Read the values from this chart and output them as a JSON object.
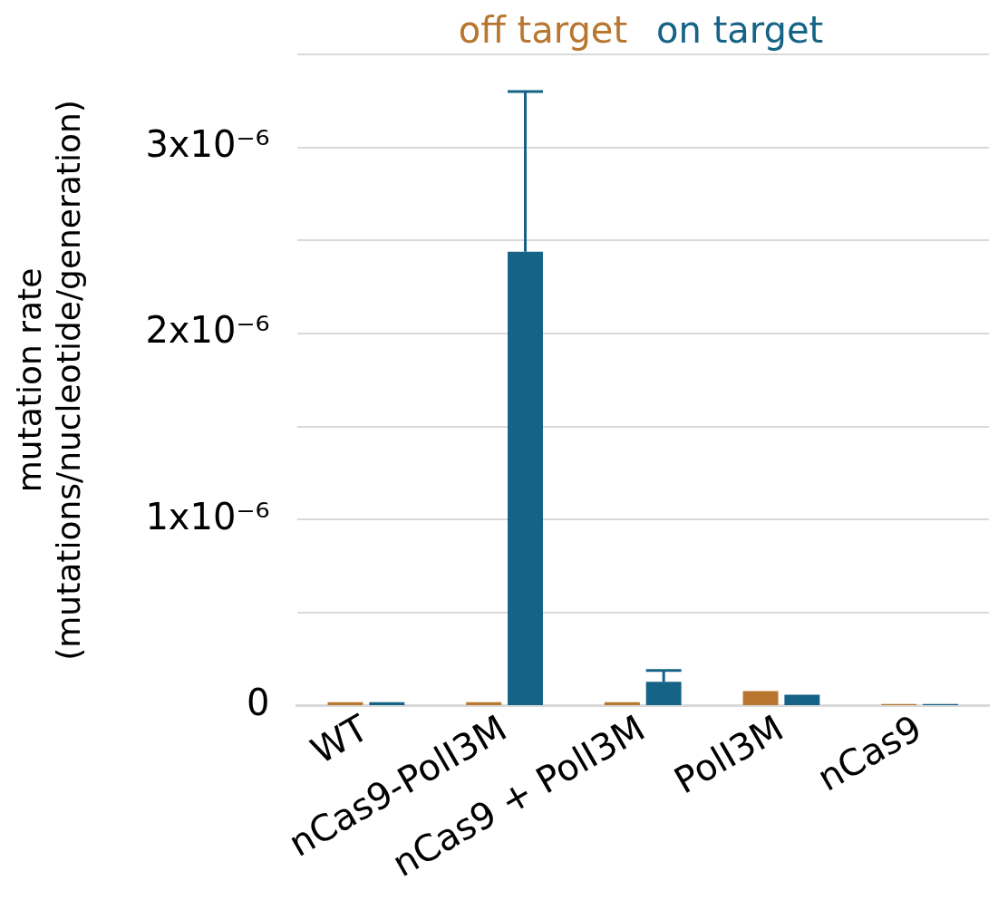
{
  "chart_data": {
    "type": "bar",
    "categories": [
      "WT",
      "nCas9-PolI3M",
      "nCas9 + PolI3M",
      "PolI3M",
      "nCas9"
    ],
    "series": [
      {
        "name": "off target",
        "color": "#b8762f",
        "values": [
          2e-08,
          2e-08,
          2e-08,
          8e-08,
          1e-08
        ]
      },
      {
        "name": "on target",
        "color": "#156386",
        "values": [
          2e-08,
          2.44e-06,
          1.3e-07,
          6e-08,
          1e-08
        ],
        "errors": [
          null,
          [
            2.44e-06,
            3.3e-06
          ],
          [
            1.3e-07,
            1.9e-07
          ],
          null,
          null
        ]
      }
    ],
    "ylabel": "mutation rate\n(mutations/nucleotide/generation)",
    "ylim": [
      0,
      3.5e-06
    ],
    "yticks": [
      {
        "value": 0,
        "label": "0"
      },
      {
        "value": 5e-07,
        "label": null
      },
      {
        "value": 1e-06,
        "label": "1x10⁻⁶"
      },
      {
        "value": 1.5e-06,
        "label": null
      },
      {
        "value": 2e-06,
        "label": "2x10⁻⁶"
      },
      {
        "value": 2.5e-06,
        "label": null
      },
      {
        "value": 3e-06,
        "label": "3x10⁻⁶"
      },
      {
        "value": 3.5e-06,
        "label": null
      }
    ],
    "grid": "y",
    "legend": "top"
  }
}
